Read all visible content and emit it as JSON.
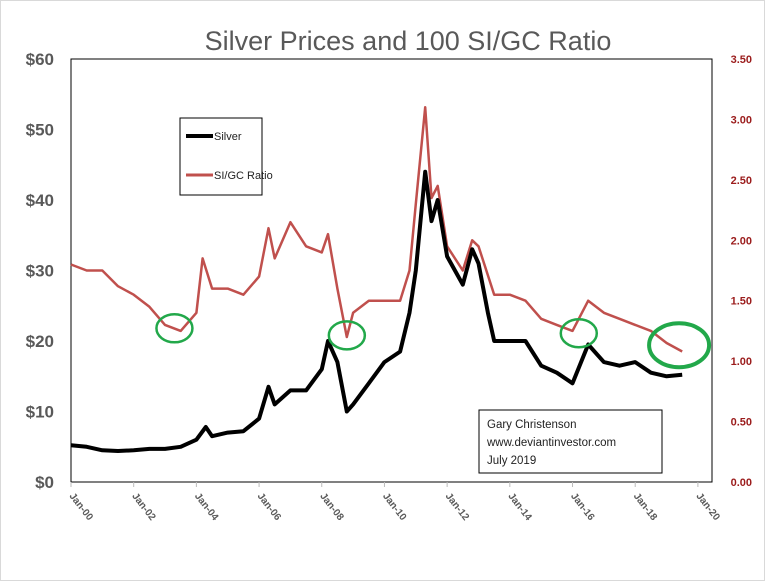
{
  "chart_data": {
    "type": "line",
    "title": "Silver Prices and 100 SI/GC Ratio",
    "xlabel": "",
    "ylabel": "",
    "xlim": [
      2000,
      2020.45
    ],
    "ylim": [
      0,
      60
    ],
    "y2lim": [
      0,
      3.5
    ],
    "grid": false,
    "x_tick_labels": [
      "Jan-00",
      "Jan-02",
      "Jan-04",
      "Jan-06",
      "Jan-08",
      "Jan-10",
      "Jan-12",
      "Jan-14",
      "Jan-16",
      "Jan-18",
      "Jan-20"
    ],
    "x_tick_values": [
      2000,
      2002,
      2004,
      2006,
      2008,
      2010,
      2012,
      2014,
      2016,
      2018,
      2020
    ],
    "y_tick_labels": [
      "$0",
      "$10",
      "$20",
      "$30",
      "$40",
      "$50",
      "$60"
    ],
    "y_tick_values": [
      0,
      10,
      20,
      30,
      40,
      50,
      60
    ],
    "y2_tick_labels": [
      "0.00",
      "0.50",
      "1.00",
      "1.50",
      "2.00",
      "2.50",
      "3.00",
      "3.50"
    ],
    "y2_tick_values": [
      0,
      0.5,
      1,
      1.5,
      2,
      2.5,
      3,
      3.5
    ],
    "legend": {
      "placement": "top-left",
      "entries": [
        "Silver",
        "SI/GC Ratio"
      ]
    },
    "series": [
      {
        "name": "Silver",
        "axis": "left",
        "color": "#000000",
        "x": [
          2000,
          2000.5,
          2001,
          2001.5,
          2002,
          2002.5,
          2003,
          2003.5,
          2004,
          2004.3,
          2004.5,
          2005,
          2005.5,
          2006,
          2006.3,
          2006.5,
          2007,
          2007.5,
          2008,
          2008.2,
          2008.5,
          2008.8,
          2009,
          2009.5,
          2010,
          2010.5,
          2010.8,
          2011,
          2011.3,
          2011.5,
          2011.7,
          2012,
          2012.5,
          2012.8,
          2013,
          2013.3,
          2013.5,
          2014,
          2014.5,
          2015,
          2015.5,
          2016,
          2016.5,
          2017,
          2017.5,
          2018,
          2018.5,
          2019,
          2019.5
        ],
        "values": [
          5.2,
          5.0,
          4.5,
          4.4,
          4.5,
          4.7,
          4.7,
          5.0,
          6.0,
          7.8,
          6.5,
          7.0,
          7.2,
          9.0,
          13.5,
          11.0,
          13.0,
          13.0,
          16.0,
          20.0,
          17.0,
          10.0,
          11.0,
          14.0,
          17.0,
          18.5,
          24.0,
          30.0,
          44.0,
          37.0,
          40.0,
          32.0,
          28.0,
          33.0,
          31.0,
          24.0,
          20.0,
          20.0,
          20.0,
          16.5,
          15.5,
          14.0,
          19.5,
          17.0,
          16.5,
          17.0,
          15.5,
          15.0,
          15.2
        ]
      },
      {
        "name": "SI/GC Ratio",
        "axis": "right",
        "color": "#c0504d",
        "x": [
          2000,
          2000.5,
          2001,
          2001.5,
          2002,
          2002.5,
          2003,
          2003.5,
          2004,
          2004.2,
          2004.5,
          2005,
          2005.5,
          2006,
          2006.3,
          2006.5,
          2007,
          2007.5,
          2008,
          2008.2,
          2008.5,
          2008.8,
          2009,
          2009.5,
          2010,
          2010.5,
          2010.8,
          2011,
          2011.3,
          2011.5,
          2011.7,
          2012,
          2012.5,
          2012.8,
          2013,
          2013.5,
          2014,
          2014.5,
          2015,
          2015.5,
          2016,
          2016.5,
          2017,
          2017.5,
          2018,
          2018.5,
          2019,
          2019.5
        ],
        "values": [
          1.8,
          1.75,
          1.75,
          1.62,
          1.55,
          1.45,
          1.3,
          1.25,
          1.4,
          1.85,
          1.6,
          1.6,
          1.55,
          1.7,
          2.1,
          1.85,
          2.15,
          1.95,
          1.9,
          2.05,
          1.6,
          1.2,
          1.4,
          1.5,
          1.5,
          1.5,
          1.75,
          2.3,
          3.1,
          2.35,
          2.45,
          1.95,
          1.75,
          2.0,
          1.95,
          1.55,
          1.55,
          1.5,
          1.35,
          1.3,
          1.25,
          1.5,
          1.4,
          1.35,
          1.3,
          1.25,
          1.15,
          1.08
        ]
      }
    ],
    "annotations": [
      {
        "type": "circle",
        "x": 2003.3,
        "y": 21.8
      },
      {
        "type": "circle",
        "x": 2008.8,
        "y": 20.8
      },
      {
        "type": "circle",
        "x": 2016.2,
        "y": 21.1
      },
      {
        "type": "circle-large",
        "x": 2019.4,
        "y": 19.4
      }
    ],
    "note_lines": [
      "Gary Christenson",
      "www.deviantinvestor.com",
      "July 2019"
    ]
  }
}
